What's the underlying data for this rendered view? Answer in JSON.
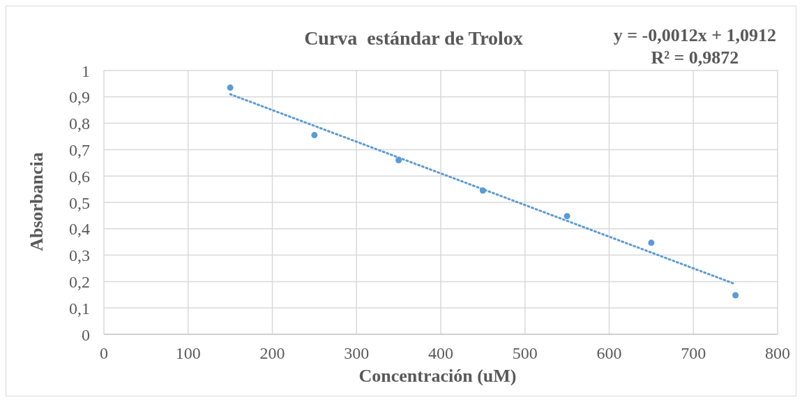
{
  "chart_data": {
    "type": "scatter",
    "title": "Curva  estándar de Trolox",
    "xlabel": "Concentración (uM)",
    "ylabel": "Absorbancia",
    "annotations": [
      "y = -0,0012x + 1,0912",
      "R² = 0,9872"
    ],
    "x": [
      150,
      250,
      350,
      450,
      550,
      650,
      750
    ],
    "series": [
      {
        "color": "#5b9bd5",
        "values": [
          0.935,
          0.755,
          0.66,
          0.545,
          0.448,
          0.347,
          0.148
        ]
      },
      {
        "type": "line",
        "color": "#5b9bd5",
        "x": [
          150,
          750
        ],
        "values": [
          0.91,
          0.19
        ],
        "marker": "none",
        "line_style": "dotted"
      }
    ],
    "xlim": [
      0,
      800
    ],
    "xticks": [
      0,
      100,
      200,
      300,
      400,
      500,
      600,
      700,
      800
    ],
    "ylim": [
      0,
      1
    ],
    "yticks": [
      0,
      {
        "value": 0.1,
        "label": "0,1"
      },
      {
        "value": 0.2,
        "label": "0,2"
      },
      {
        "value": 0.3,
        "label": "0,3"
      },
      {
        "value": 0.4,
        "label": "0,4"
      },
      {
        "value": 0.5,
        "label": "0,5"
      },
      {
        "value": 0.6,
        "label": "0,6"
      },
      {
        "value": 0.7,
        "label": "0,7"
      },
      {
        "value": 0.8,
        "label": "0,8"
      },
      {
        "value": 0.9,
        "label": "0,9"
      },
      1
    ],
    "grid": true,
    "marker": "circle"
  }
}
